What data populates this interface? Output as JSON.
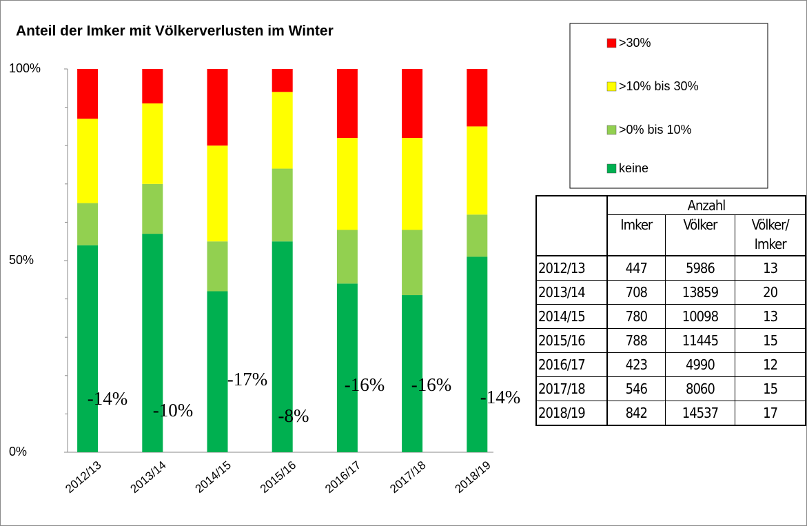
{
  "chart_data": {
    "type": "stacked_bar",
    "title": "Anteil der Imker mit Völkerverlusten im Winter",
    "categories": [
      "2012/13",
      "2013/14",
      "2014/15",
      "2015/16",
      "2016/17",
      "2017/18",
      "2018/19"
    ],
    "series": [
      {
        "name": "keine",
        "color": "#00b050",
        "values": [
          54,
          57,
          42,
          55,
          44,
          41,
          51
        ]
      },
      {
        "name": ">0% bis 10%",
        "color": "#92d050",
        "values": [
          11,
          13,
          13,
          19,
          14,
          17,
          11
        ]
      },
      {
        "name": ">10% bis 30%",
        "color": "#ffff00",
        "values": [
          22,
          21,
          25,
          20,
          24,
          24,
          23
        ]
      },
      {
        "name": ">30%",
        "color": "#ff0000",
        "values": [
          13,
          9,
          20,
          6,
          18,
          18,
          15
        ]
      }
    ],
    "annotations": [
      "-14%",
      "-10%",
      "-17%",
      "-8%",
      "-16%",
      "-16%",
      "-14%"
    ],
    "ylim": [
      0,
      100
    ],
    "yticks": [
      {
        "value": 0,
        "label": "0%"
      },
      {
        "value": 50,
        "label": "50%"
      },
      {
        "value": 100,
        "label": "100%"
      }
    ],
    "minor_yticks": [
      10,
      20,
      30,
      40,
      60,
      70,
      80,
      90
    ],
    "legend": "top-right"
  },
  "table": {
    "group_header": "Anzahl",
    "columns": [
      "Imker",
      "Völker",
      "Völker/\nImker"
    ],
    "rows": [
      [
        "2012/13",
        447,
        5986,
        13
      ],
      [
        "2013/14",
        708,
        13859,
        20
      ],
      [
        "2014/15",
        780,
        10098,
        13
      ],
      [
        "2015/16",
        788,
        11445,
        15
      ],
      [
        "2016/17",
        423,
        4990,
        12
      ],
      [
        "2017/18",
        546,
        8060,
        15
      ],
      [
        "2018/19",
        842,
        14537,
        17
      ]
    ]
  }
}
